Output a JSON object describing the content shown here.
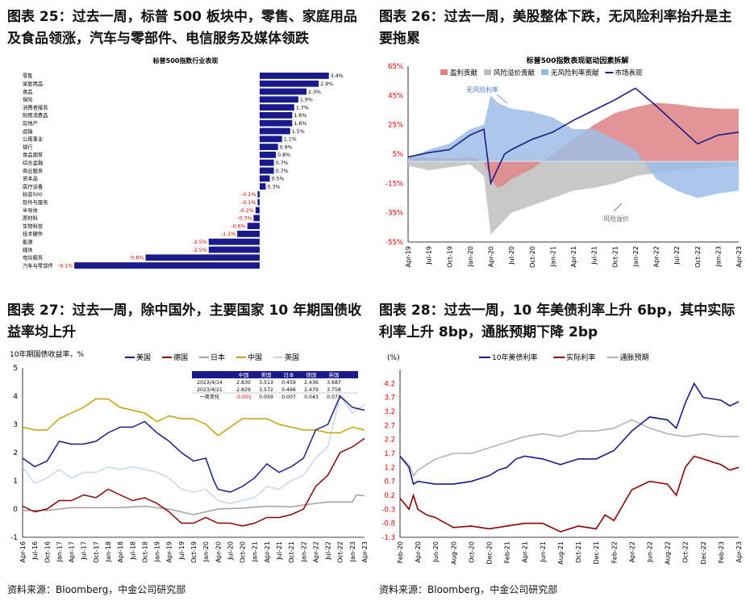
{
  "titles": {
    "c25": "图表 25：过去一周，标普 500 板块中，零售、家庭用品及食品领涨，汽车与零部件、电信服务及媒体领跌",
    "c26": "图表 26：过去一周，美股整体下跌，无风险利率抬升是主要拖累",
    "c27": "图表 27：过去一周，除中国外，主要国家 10 年期国债收益率均上升",
    "c28": "图表 28：过去一周，10 年美债利率上升 6bp，其中实际利率上升 8bp，通胀预期下降 2bp"
  },
  "sources": {
    "left": "资料来源：Bloomberg，中金公司研究部",
    "right": "资料来源：Bloomberg，中金公司研究部"
  },
  "chart_data": [
    {
      "id": "c25",
      "type": "bar",
      "orientation": "horizontal",
      "title": "标普500指数行业表现",
      "categories": [
        "零售",
        "家庭用品",
        "食品",
        "保险",
        "消费者服务",
        "耐用消费品",
        "房地产",
        "运输",
        "公用事业",
        "银行",
        "食品烟草",
        "综合金融",
        "商业服务",
        "资本品",
        "医疗设备",
        "标普500",
        "软件与服务",
        "半导体",
        "原材料",
        "生物科技",
        "技术硬件",
        "能源",
        "媒体",
        "电信服务",
        "汽车与零部件"
      ],
      "values": [
        3.4,
        2.9,
        2.3,
        1.9,
        1.7,
        1.6,
        1.6,
        1.5,
        1.1,
        0.9,
        0.8,
        0.7,
        0.7,
        0.5,
        0.3,
        -0.1,
        -0.1,
        -0.2,
        -0.3,
        -0.6,
        -1.1,
        -2.5,
        -2.5,
        -5.6,
        -9.1
      ],
      "value_labels": [
        "3.4%",
        "2.9%",
        "2.3%",
        "1.9%",
        "1.7%",
        "1.6%",
        "1.6%",
        "1.5%",
        "1.1%",
        "0.9%",
        "0.8%",
        "0.7%",
        "0.7%",
        "0.5%",
        "0.3%",
        "-0.1%",
        "-0.1%",
        "-0.2%",
        "-0.3%",
        "-0.6%",
        "-1.1%",
        "-2.5%",
        "-2.5%",
        "-5.6%",
        "-9.1%"
      ],
      "bar_color": "#1a1a8c",
      "negative_label_color": "#e00000",
      "xlim": [
        -9.5,
        4.2
      ]
    },
    {
      "id": "c26",
      "type": "area",
      "title": "标普500指数表现驱动因素拆解",
      "yticks": [
        "65%",
        "45%",
        "25%",
        "5%",
        "-15%",
        "-35%",
        "-55%"
      ],
      "ylim": [
        -55,
        65
      ],
      "xticks": [
        "Apr-19",
        "Jul-19",
        "Oct-19",
        "Jan-20",
        "Apr-20",
        "Jul-20",
        "Oct-20",
        "Jan-21",
        "Apr-21",
        "Jul-21",
        "Oct-21",
        "Jan-22",
        "Apr-22",
        "Jul-22",
        "Oct-22",
        "Jan-23",
        "Apr-23"
      ],
      "x_months": [
        0,
        3,
        6,
        9,
        12,
        15,
        18,
        21,
        24,
        27,
        30,
        33,
        36,
        39,
        42,
        45,
        48
      ],
      "legend": [
        {
          "label": "盈利贡献",
          "color": "#e08080",
          "kind": "area"
        },
        {
          "label": "风险溢价贡献",
          "color": "#bdbdbd",
          "kind": "area"
        },
        {
          "label": "无风险利率贡献",
          "color": "#94b8e3",
          "kind": "area"
        },
        {
          "label": "市场表现",
          "color": "#1a1a8c",
          "kind": "line"
        }
      ],
      "annotations": [
        "无风险利率",
        "风险溢价"
      ],
      "series": [
        {
          "name": "盈利贡献",
          "x": [
            0,
            3,
            6,
            9,
            11,
            12,
            13,
            14,
            15,
            18,
            21,
            24,
            27,
            30,
            33,
            36,
            39,
            42,
            45,
            48
          ],
          "values": [
            3,
            2.5,
            2,
            3,
            0,
            -12,
            -18,
            -16,
            -12,
            -5,
            5,
            15,
            25,
            33,
            37,
            40,
            39,
            37,
            36,
            36
          ]
        },
        {
          "name": "风险溢价贡献",
          "x": [
            0,
            3,
            6,
            9,
            11,
            12,
            13,
            14,
            15,
            18,
            21,
            24,
            27,
            30,
            33,
            36,
            39,
            42,
            45,
            48
          ],
          "values": [
            -3,
            -6,
            -4,
            -2,
            -10,
            -50,
            -45,
            -40,
            -35,
            -30,
            -25,
            -20,
            -18,
            -15,
            -10,
            -8,
            -6,
            -5,
            -4,
            -3
          ]
        },
        {
          "name": "无风险利率贡献",
          "x": [
            0,
            3,
            6,
            9,
            11,
            12,
            13,
            14,
            15,
            18,
            21,
            24,
            27,
            30,
            33,
            36,
            39,
            42,
            45,
            48
          ],
          "values": [
            2,
            8,
            12,
            22,
            25,
            45,
            40,
            38,
            36,
            34,
            30,
            22,
            22,
            15,
            8,
            -12,
            -20,
            -25,
            -22,
            -20
          ]
        },
        {
          "name": "市场表现",
          "x": [
            0,
            3,
            6,
            9,
            11,
            12,
            13,
            14,
            15,
            18,
            21,
            24,
            27,
            30,
            33,
            36,
            39,
            42,
            45,
            48
          ],
          "values": [
            3,
            6,
            8,
            18,
            22,
            -15,
            -5,
            5,
            8,
            15,
            20,
            28,
            35,
            42,
            50,
            38,
            25,
            12,
            18,
            20
          ]
        }
      ]
    },
    {
      "id": "c27",
      "type": "line",
      "ylabel": "10年期国债收益率，%",
      "ylim": [
        -1,
        5
      ],
      "yticks": [
        "5",
        "4",
        "3",
        "2",
        "1",
        "0",
        "-1"
      ],
      "xticks": [
        "Apr-16",
        "Jul-16",
        "Oct-16",
        "Jan-17",
        "Apr-17",
        "Jul-17",
        "Oct-17",
        "Jan-18",
        "Apr-18",
        "Jul-18",
        "Oct-18",
        "Jan-19",
        "Apr-19",
        "Jul-19",
        "Oct-19",
        "Jan-20",
        "Apr-20",
        "Jul-20",
        "Oct-20",
        "Jan-21",
        "Apr-21",
        "Jul-21",
        "Oct-21",
        "Jan-22",
        "Apr-22",
        "Jul-22",
        "Oct-22",
        "Jan-23",
        "Apr-23"
      ],
      "x_months": [
        0,
        3,
        6,
        9,
        12,
        15,
        18,
        21,
        24,
        27,
        30,
        33,
        36,
        39,
        42,
        45,
        48,
        51,
        54,
        57,
        60,
        63,
        66,
        69,
        72,
        75,
        78,
        81,
        84
      ],
      "series": [
        {
          "name": "美国",
          "color": "#1a1a8c",
          "x": [
            0,
            3,
            6,
            9,
            12,
            15,
            18,
            21,
            24,
            27,
            30,
            33,
            36,
            39,
            42,
            45,
            47,
            48,
            51,
            54,
            57,
            60,
            63,
            66,
            69,
            72,
            75,
            78,
            81,
            84
          ],
          "values": [
            1.8,
            1.5,
            1.7,
            2.4,
            2.3,
            2.3,
            2.4,
            2.7,
            2.9,
            2.9,
            3.1,
            2.7,
            2.4,
            2.0,
            1.7,
            1.8,
            1.0,
            0.7,
            0.6,
            0.8,
            1.1,
            1.6,
            1.3,
            1.5,
            1.8,
            2.8,
            3.0,
            4.0,
            3.6,
            3.5
          ]
        },
        {
          "name": "德国",
          "color": "#8b0000",
          "x": [
            0,
            3,
            6,
            9,
            12,
            15,
            18,
            21,
            24,
            27,
            30,
            33,
            36,
            39,
            42,
            45,
            48,
            51,
            54,
            57,
            60,
            63,
            66,
            69,
            72,
            75,
            78,
            81,
            84
          ],
          "values": [
            0.1,
            -0.1,
            0.0,
            0.3,
            0.3,
            0.5,
            0.4,
            0.7,
            0.5,
            0.3,
            0.4,
            0.2,
            -0.1,
            -0.5,
            -0.5,
            -0.3,
            -0.5,
            -0.5,
            -0.6,
            -0.5,
            -0.3,
            -0.3,
            -0.2,
            0.0,
            0.8,
            1.2,
            2.0,
            2.2,
            2.5
          ]
        },
        {
          "name": "日本",
          "color": "#a0a0a0",
          "x": [
            0,
            6,
            12,
            18,
            24,
            30,
            36,
            42,
            48,
            54,
            60,
            66,
            72,
            75,
            78,
            81,
            82,
            84
          ],
          "values": [
            -0.05,
            -0.05,
            0.05,
            0.05,
            0.05,
            0.1,
            0.0,
            -0.2,
            0.0,
            0.03,
            0.1,
            0.08,
            0.2,
            0.25,
            0.25,
            0.25,
            0.5,
            0.47
          ]
        },
        {
          "name": "中国",
          "color": "#c8a000",
          "x": [
            0,
            3,
            6,
            9,
            12,
            15,
            18,
            21,
            24,
            27,
            30,
            33,
            36,
            39,
            42,
            45,
            48,
            51,
            54,
            57,
            60,
            63,
            66,
            69,
            72,
            75,
            78,
            81,
            84
          ],
          "values": [
            2.9,
            2.8,
            2.8,
            3.2,
            3.4,
            3.6,
            3.9,
            3.9,
            3.6,
            3.5,
            3.4,
            3.1,
            3.3,
            3.2,
            3.2,
            3.0,
            2.6,
            2.9,
            3.2,
            3.2,
            3.2,
            3.0,
            2.9,
            2.8,
            2.8,
            2.7,
            2.7,
            2.9,
            2.8
          ]
        },
        {
          "name": "英国",
          "color": "#c8d8ea",
          "x": [
            0,
            3,
            6,
            9,
            12,
            15,
            18,
            21,
            24,
            27,
            30,
            33,
            36,
            39,
            42,
            45,
            48,
            51,
            54,
            57,
            60,
            63,
            66,
            69,
            72,
            75,
            78,
            81,
            84
          ],
          "values": [
            1.5,
            0.9,
            1.1,
            1.4,
            1.1,
            1.3,
            1.3,
            1.5,
            1.4,
            1.5,
            1.4,
            1.3,
            1.1,
            0.7,
            0.6,
            0.7,
            0.3,
            0.2,
            0.3,
            0.4,
            0.8,
            0.7,
            1.0,
            1.2,
            1.8,
            2.2,
            4.0,
            3.4,
            3.7
          ]
        }
      ],
      "table": {
        "headers": [
          "",
          "中国",
          "美国",
          "日本",
          "德国",
          "英国"
        ],
        "rows": [
          [
            "2023/4/14",
            "2.830",
            "3.513",
            "0.459",
            "2.436",
            "3.687"
          ],
          [
            "2023/4/21",
            "2.829",
            "3.572",
            "0.466",
            "2.479",
            "3.758"
          ],
          [
            "一周变化",
            "-0.001",
            "0.059",
            "0.007",
            "0.043",
            "0.071"
          ]
        ]
      }
    },
    {
      "id": "c28",
      "type": "line",
      "ylabel": "(%)",
      "ylim": [
        -1.3,
        4.7
      ],
      "yticks": [
        "4.2",
        "3.7",
        "3.2",
        "2.7",
        "2.2",
        "1.7",
        "1.2",
        "0.7",
        "0.2",
        "-0.3",
        "-0.8",
        "-1.3"
      ],
      "xticks": [
        "Feb-20",
        "Apr-20",
        "Jun-20",
        "Aug-20",
        "Oct-20",
        "Dec-20",
        "Feb-21",
        "Apr-21",
        "Jun-21",
        "Aug-21",
        "Oct-21",
        "Dec-21",
        "Feb-22",
        "Apr-22",
        "Jun-22",
        "Aug-22",
        "Oct-22",
        "Dec-22",
        "Feb-23",
        "Apr-23"
      ],
      "x_months": [
        0,
        2,
        4,
        6,
        8,
        10,
        12,
        14,
        16,
        18,
        20,
        22,
        24,
        26,
        28,
        30,
        32,
        34,
        36,
        38
      ],
      "series": [
        {
          "name": "10年美债利率",
          "color": "#1a1a8c",
          "x": [
            0,
            1,
            1.5,
            2,
            3,
            4,
            6,
            8,
            10,
            11,
            12,
            13,
            14,
            16,
            18,
            20,
            22,
            24,
            26,
            28,
            30,
            31,
            32,
            33,
            34,
            36,
            37,
            38
          ],
          "values": [
            1.6,
            1.2,
            0.6,
            0.7,
            0.65,
            0.6,
            0.6,
            0.7,
            0.9,
            1.1,
            1.2,
            1.5,
            1.6,
            1.5,
            1.3,
            1.5,
            1.5,
            1.8,
            2.5,
            3.0,
            2.9,
            2.6,
            3.5,
            4.2,
            3.7,
            3.6,
            3.4,
            3.55
          ]
        },
        {
          "name": "实际利率",
          "color": "#8b0000",
          "x": [
            0,
            1,
            1.5,
            2,
            3,
            4,
            6,
            8,
            10,
            12,
            14,
            16,
            18,
            20,
            22,
            23,
            24,
            26,
            28,
            30,
            31,
            32,
            33,
            34,
            36,
            37,
            38
          ],
          "values": [
            0.1,
            -0.3,
            0.2,
            -0.3,
            -0.5,
            -0.6,
            -0.95,
            -0.9,
            -1.0,
            -0.9,
            -0.8,
            -0.8,
            -1.1,
            -0.9,
            -1.0,
            -0.5,
            -0.7,
            0.4,
            0.7,
            0.6,
            0.2,
            1.2,
            1.6,
            1.5,
            1.3,
            1.1,
            1.2
          ]
        },
        {
          "name": "通胀预期",
          "color": "#b3b3b3",
          "x": [
            0,
            1,
            1.5,
            2,
            3,
            4,
            6,
            8,
            10,
            12,
            14,
            16,
            18,
            20,
            22,
            24,
            26,
            28,
            30,
            32,
            34,
            36,
            38
          ],
          "values": [
            1.6,
            1.3,
            0.9,
            1.1,
            1.3,
            1.5,
            1.7,
            1.7,
            1.9,
            2.1,
            2.3,
            2.4,
            2.3,
            2.5,
            2.5,
            2.6,
            2.9,
            2.6,
            2.4,
            2.3,
            2.4,
            2.3,
            2.3
          ]
        }
      ]
    }
  ]
}
